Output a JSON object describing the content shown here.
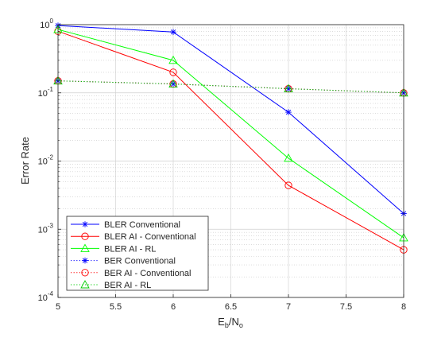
{
  "chart_data": {
    "type": "line",
    "xlabel": {
      "base": "E",
      "sub1": "b",
      "mid": "/N",
      "sub2": "o"
    },
    "ylabel": "Error Rate",
    "x": [
      5,
      6,
      7,
      8
    ],
    "xlim": [
      5,
      8
    ],
    "ylim": [
      0.0001,
      1
    ],
    "yscale": "log",
    "grid": true,
    "xticks": [
      "5",
      "5.5",
      "6",
      "6.5",
      "7",
      "7.5",
      "8"
    ],
    "yticks": [
      {
        "base": "10",
        "exp": "0"
      },
      {
        "base": "10",
        "exp": "-1"
      },
      {
        "base": "10",
        "exp": "-2"
      },
      {
        "base": "10",
        "exp": "-3"
      },
      {
        "base": "10",
        "exp": "-4"
      }
    ],
    "legend_position": "bottom-left",
    "series": [
      {
        "name": "BLER Conventional",
        "values": [
          0.97,
          0.78,
          0.052,
          0.0017
        ],
        "color": "#0000ff",
        "marker": "asterisk",
        "dash": "solid"
      },
      {
        "name": "BLER AI - Conventional",
        "values": [
          0.8,
          0.2,
          0.0044,
          0.0005
        ],
        "color": "#ff0000",
        "marker": "circle",
        "dash": "solid"
      },
      {
        "name": "BLER AI - RL",
        "values": [
          0.85,
          0.3,
          0.011,
          0.00075
        ],
        "color": "#00ff00",
        "marker": "triangle",
        "dash": "solid"
      },
      {
        "name": "BER Conventional",
        "values": [
          0.15,
          0.135,
          0.115,
          0.1
        ],
        "color": "#0000ff",
        "marker": "asterisk",
        "dash": "dotted"
      },
      {
        "name": "BER AI - Conventional",
        "values": [
          0.15,
          0.135,
          0.115,
          0.1
        ],
        "color": "#ff0000",
        "marker": "circle",
        "dash": "dotted"
      },
      {
        "name": "BER AI - RL",
        "values": [
          0.15,
          0.135,
          0.115,
          0.1
        ],
        "color": "#00cc00",
        "marker": "triangle",
        "dash": "dotted"
      }
    ]
  }
}
